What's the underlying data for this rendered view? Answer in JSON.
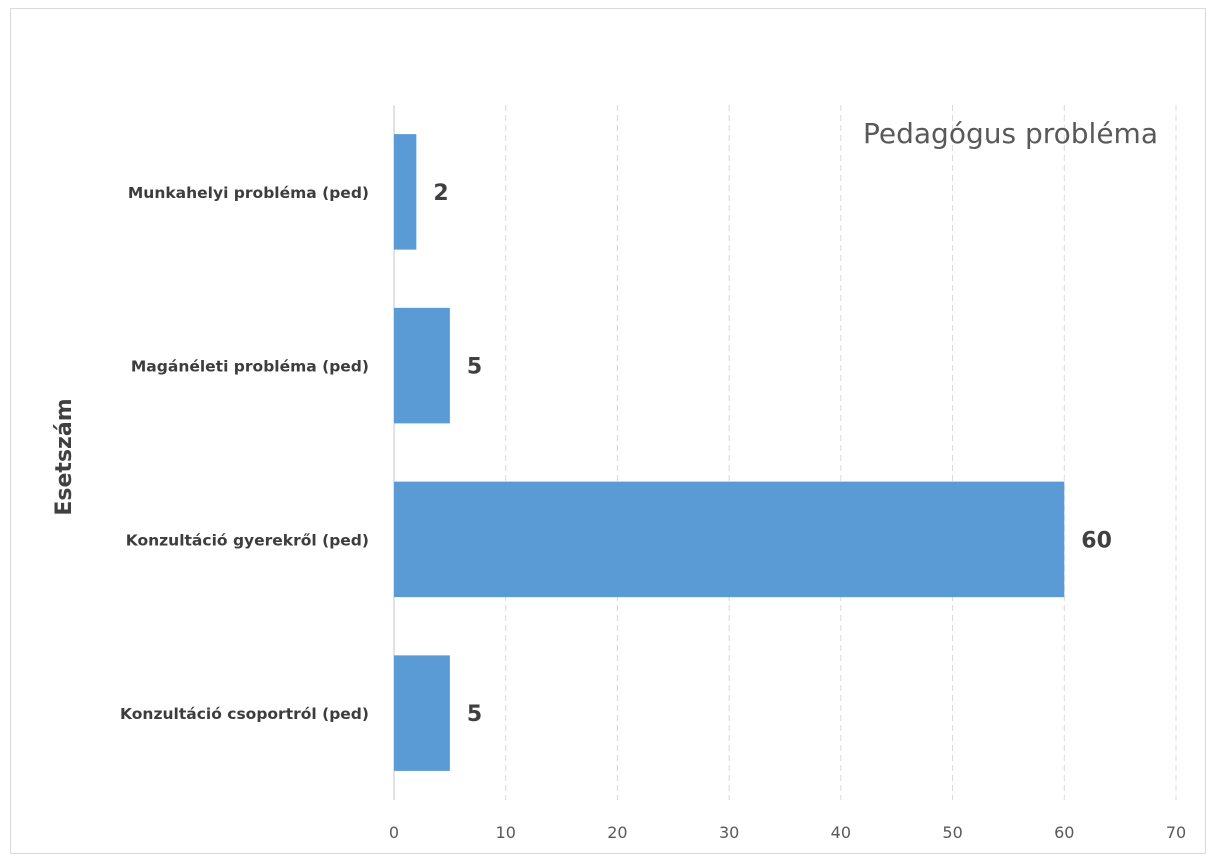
{
  "chart_data": {
    "type": "bar",
    "orientation": "horizontal",
    "title": "Pedagógus probléma",
    "ylabel": "Esetszám",
    "xlabel": "",
    "categories": [
      "Munkahelyi probléma (ped)",
      "Magánéleti probléma (ped)",
      "Konzultáció gyerekről (ped)",
      "Konzultáció csoportról (ped)"
    ],
    "values": [
      2,
      5,
      60,
      5
    ],
    "xlim": [
      0,
      70
    ],
    "x_ticks": [
      0,
      10,
      20,
      30,
      40,
      50,
      60,
      70
    ],
    "grid": true,
    "grid_style": "dashed",
    "legend": "none",
    "bar_color": "#5b9bd5",
    "data_labels": [
      "2",
      "5",
      "60",
      "5"
    ]
  }
}
